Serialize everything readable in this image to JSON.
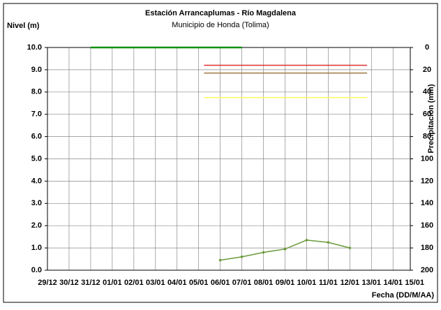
{
  "chart_data": {
    "type": "line",
    "title": "Estación Arrancaplumas - Río Magdalena",
    "subtitle": "Municipio de Honda (Tolima)",
    "y_label": "Nivel (m)",
    "y2_label": "Precipitacion (mm)",
    "x_label": "Fecha (DD/M/AA)",
    "categories": [
      "29/12",
      "30/12",
      "31/12",
      "01/01",
      "02/01",
      "03/01",
      "04/01",
      "05/01",
      "06/01",
      "07/01",
      "08/01",
      "09/01",
      "10/01",
      "11/01",
      "12/01",
      "13/01",
      "14/01",
      "15/01"
    ],
    "ylim": [
      0,
      10
    ],
    "yticks": [
      {
        "value": 0,
        "label": "0.0"
      },
      {
        "value": 1,
        "label": "1.0"
      },
      {
        "value": 2,
        "label": "2.0"
      },
      {
        "value": 3,
        "label": "3.0"
      },
      {
        "value": 4,
        "label": "4.0"
      },
      {
        "value": 5,
        "label": "5.0"
      },
      {
        "value": 6,
        "label": "6.0"
      },
      {
        "value": 7,
        "label": "7.0"
      },
      {
        "value": 8,
        "label": "8.0"
      },
      {
        "value": 9,
        "label": "9.0"
      },
      {
        "value": 10,
        "label": "10.0"
      }
    ],
    "y2lim": [
      0,
      200
    ],
    "y2_inverted": true,
    "y2ticks": [
      0,
      20,
      40,
      60,
      80,
      100,
      120,
      140,
      160,
      180,
      200
    ],
    "grid": true,
    "series": [
      {
        "color": "#109010",
        "axis": "y2",
        "values": [
          null,
          null,
          0,
          0,
          0,
          0,
          0,
          0,
          0,
          0,
          null,
          null,
          null,
          null,
          null,
          null,
          null,
          null
        ]
      },
      {
        "color": "#6a9a3a",
        "values": [
          null,
          null,
          null,
          null,
          null,
          null,
          null,
          null,
          0.45,
          0.6,
          0.8,
          0.95,
          1.35,
          1.25,
          1.0,
          null,
          null,
          null
        ]
      }
    ],
    "thresholds": [
      {
        "value": 9.2,
        "color": "#e03030"
      },
      {
        "value": 8.85,
        "color": "#a07840"
      },
      {
        "value": 7.75,
        "color": "#ffff60"
      }
    ]
  }
}
